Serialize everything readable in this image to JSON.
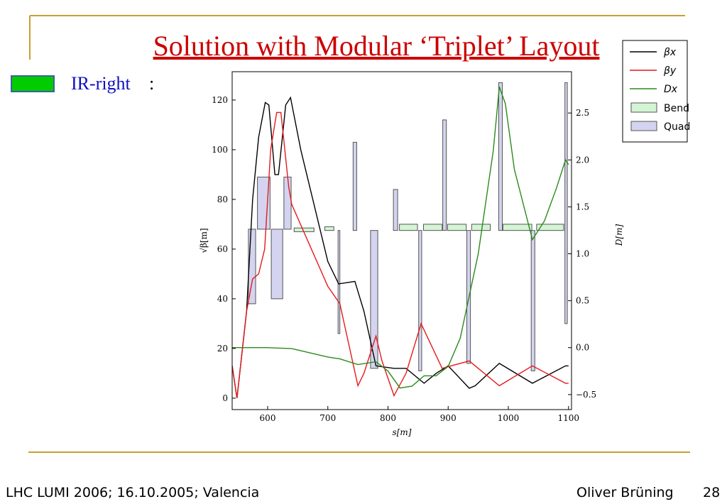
{
  "slide": {
    "title": "Solution with Modular ‘Triplet’ Layout",
    "label": "IR-right",
    "label_colon": ":",
    "footer_left": "LHC LUMI 2006; 16.10.2005; Valencia",
    "footer_author": "Oliver Brüning",
    "page_number": "28"
  },
  "chart_data": {
    "type": "line",
    "xlabel": "s[m]",
    "ylabel": "√β[m]",
    "y2label": "D[m]",
    "xlim": [
      541,
      1105
    ],
    "ylim": [
      -4.6,
      131.4
    ],
    "y2lim": [
      -0.66,
      2.94
    ],
    "xticks": [
      600,
      700,
      800,
      900,
      1000,
      1100
    ],
    "yticks": [
      0,
      20,
      40,
      60,
      80,
      100,
      120
    ],
    "y2ticks": [
      {
        "value": -0.5,
        "label": "−0.5"
      },
      {
        "value": 0,
        "label": "0.0"
      },
      {
        "value": 0.5,
        "label": "0.5"
      },
      {
        "value": 1,
        "label": "1.0"
      },
      {
        "value": 1.5,
        "label": "1.5"
      },
      {
        "value": 2,
        "label": "2.0"
      },
      {
        "value": 2.5,
        "label": "2.5"
      }
    ],
    "legend": "upper right",
    "series": [
      {
        "name": "βx",
        "color": "#000000",
        "x": [
          541,
          549,
          565,
          575,
          585,
          596,
          602,
          612,
          618,
          630,
          638,
          655,
          700,
          718,
          745,
          760,
          780,
          810,
          830,
          860,
          880,
          900,
          935,
          945,
          985,
          1040,
          1095,
          1100
        ],
        "values": [
          13,
          0,
          35,
          80,
          105,
          119,
          118,
          90,
          90,
          118,
          121,
          100,
          55,
          46,
          47,
          35,
          13,
          12,
          12,
          6,
          10,
          13,
          4,
          5,
          14,
          6,
          13,
          13
        ]
      },
      {
        "name": "βy",
        "color": "#e41a1c",
        "x": [
          541,
          549,
          565,
          575,
          585,
          595,
          605,
          615,
          622,
          635,
          640,
          700,
          720,
          750,
          760,
          780,
          790,
          810,
          830,
          855,
          890,
          935,
          985,
          1040,
          1095,
          1100
        ],
        "values": [
          13,
          0,
          35,
          48,
          50,
          60,
          100,
          115,
          115,
          85,
          78,
          45,
          38,
          5,
          10,
          25,
          15,
          1,
          10,
          30,
          12,
          15,
          5,
          13,
          6,
          6
        ]
      },
      {
        "name": "Dx",
        "color": "#2a8a1a",
        "axis": "y2",
        "x": [
          541,
          600,
          640,
          700,
          720,
          750,
          780,
          800,
          820,
          840,
          860,
          880,
          900,
          920,
          950,
          975,
          985,
          995,
          1010,
          1040,
          1060,
          1080,
          1095,
          1100
        ],
        "values": [
          0,
          0,
          -0.01,
          -0.1,
          -0.12,
          -0.18,
          -0.15,
          -0.25,
          -0.43,
          -0.41,
          -0.3,
          -0.3,
          -0.2,
          0.1,
          1,
          2.1,
          2.78,
          2.6,
          1.9,
          1.15,
          1.35,
          1.7,
          2,
          1.95
        ]
      }
    ],
    "elements": [
      {
        "name": "Bend",
        "color": "#d4f5d4",
        "boxes": [
          [
            644,
            677,
            67,
            68.5
          ],
          [
            695,
            710,
            67.5,
            69
          ],
          [
            819,
            849,
            67.5,
            70
          ],
          [
            859,
            890,
            67.5,
            70
          ],
          [
            899,
            930,
            67.5,
            70
          ],
          [
            939,
            970,
            67.5,
            70
          ],
          [
            991,
            1039,
            67.5,
            70
          ],
          [
            1047,
            1092,
            67.5,
            70
          ]
        ]
      },
      {
        "name": "Quad",
        "color": "#d4d4f0",
        "boxes": [
          [
            568,
            580,
            38,
            68
          ],
          [
            583,
            604,
            68,
            89
          ],
          [
            606,
            625,
            40,
            68
          ],
          [
            627,
            639,
            68,
            89
          ],
          [
            717,
            720,
            26,
            67.5
          ],
          [
            742,
            748,
            67.5,
            103
          ],
          [
            771,
            783,
            12,
            67.5
          ],
          [
            809,
            816,
            67.5,
            84
          ],
          [
            851,
            856,
            11,
            67.5
          ],
          [
            891,
            897,
            67.5,
            112
          ],
          [
            931,
            937,
            14,
            67.5
          ],
          [
            984,
            990,
            67.5,
            127
          ],
          [
            1038,
            1044,
            11,
            67.5
          ],
          [
            1094,
            1098,
            30,
            127
          ]
        ]
      }
    ]
  }
}
